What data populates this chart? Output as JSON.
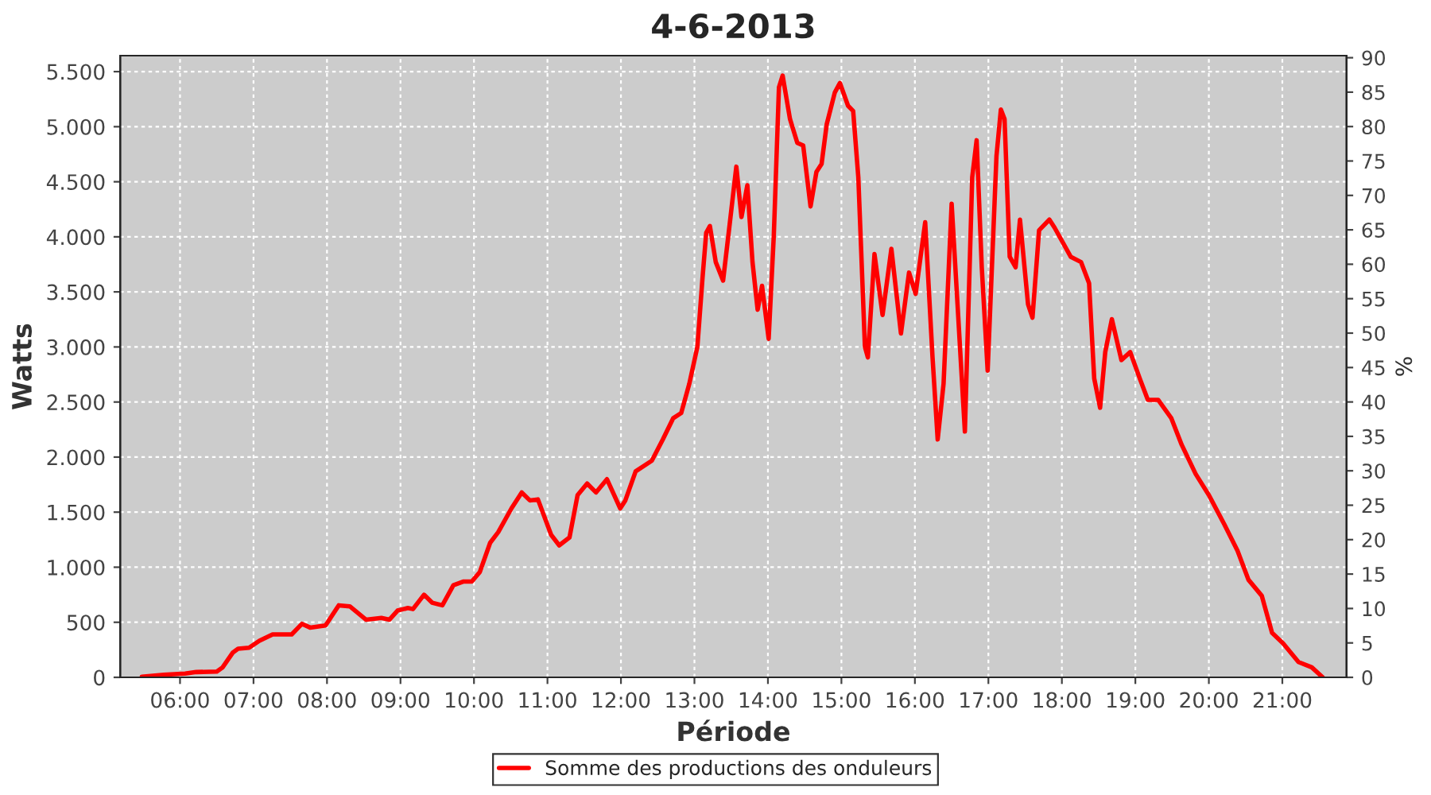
{
  "chart_data": {
    "type": "line",
    "title": "4-6-2013",
    "xlabel": "Période",
    "ylabel": "Watts",
    "y2label": "%",
    "xlim": [
      5.186,
      21.874
    ],
    "xticks": [
      {
        "value": 6,
        "label": "06:00"
      },
      {
        "value": 7,
        "label": "07:00"
      },
      {
        "value": 8,
        "label": "08:00"
      },
      {
        "value": 9,
        "label": "09:00"
      },
      {
        "value": 10,
        "label": "10:00"
      },
      {
        "value": 11,
        "label": "11:00"
      },
      {
        "value": 12,
        "label": "12:00"
      },
      {
        "value": 13,
        "label": "13:00"
      },
      {
        "value": 14,
        "label": "14:00"
      },
      {
        "value": 15,
        "label": "15:00"
      },
      {
        "value": 16,
        "label": "16:00"
      },
      {
        "value": 17,
        "label": "17:00"
      },
      {
        "value": 18,
        "label": "18:00"
      },
      {
        "value": 19,
        "label": "19:00"
      },
      {
        "value": 20,
        "label": "20:00"
      },
      {
        "value": 21,
        "label": "21:00"
      }
    ],
    "ylim": [
      0,
      5645
    ],
    "yticks": [
      0,
      500,
      {
        "value": 1000,
        "label": "1.000"
      },
      {
        "value": 1500,
        "label": "1.500"
      },
      {
        "value": 2000,
        "label": "2.000"
      },
      {
        "value": 2500,
        "label": "2.500"
      },
      {
        "value": 3000,
        "label": "3.000"
      },
      {
        "value": 3500,
        "label": "3.500"
      },
      {
        "value": 4000,
        "label": "4.000"
      },
      {
        "value": 4500,
        "label": "4.500"
      },
      {
        "value": 5000,
        "label": "5.000"
      },
      {
        "value": 5500,
        "label": "5.500"
      }
    ],
    "y2lim": [
      0,
      90.3
    ],
    "y2ticks": [
      0,
      5,
      10,
      15,
      20,
      25,
      30,
      35,
      40,
      45,
      50,
      55,
      60,
      65,
      70,
      75,
      80,
      85,
      90
    ],
    "grid": true,
    "legend": "bottom",
    "marker": "none",
    "line_style": "solid",
    "series": [
      {
        "name": "Somme des productions des onduleurs",
        "color": "#ff0000",
        "x": [
          5.48,
          5.78,
          6.07,
          6.22,
          6.5,
          6.58,
          6.72,
          6.79,
          6.94,
          7.08,
          7.26,
          7.52,
          7.66,
          7.77,
          7.98,
          8.16,
          8.31,
          8.53,
          8.74,
          8.85,
          8.96,
          9.1,
          9.17,
          9.32,
          9.43,
          9.57,
          9.72,
          9.86,
          9.97,
          10.08,
          10.22,
          10.33,
          10.51,
          10.65,
          10.76,
          10.87,
          11.05,
          11.16,
          11.3,
          11.41,
          11.54,
          11.66,
          11.81,
          11.99,
          12.06,
          12.2,
          12.42,
          12.57,
          12.71,
          12.82,
          12.93,
          13.04,
          13.11,
          13.16,
          13.21,
          13.29,
          13.39,
          13.47,
          13.57,
          13.64,
          13.72,
          13.79,
          13.86,
          13.92,
          14.01,
          14.08,
          14.15,
          14.2,
          14.3,
          14.4,
          14.48,
          14.58,
          14.66,
          14.73,
          14.8,
          14.91,
          14.98,
          15.09,
          15.16,
          15.23,
          15.32,
          15.36,
          15.45,
          15.56,
          15.68,
          15.81,
          15.92,
          16.01,
          16.14,
          16.24,
          16.31,
          16.39,
          16.5,
          16.58,
          16.68,
          16.78,
          16.84,
          16.91,
          16.99,
          17.11,
          17.17,
          17.22,
          17.29,
          17.37,
          17.43,
          17.54,
          17.6,
          17.69,
          17.83,
          17.9,
          18.12,
          18.26,
          18.37,
          18.44,
          18.52,
          18.59,
          18.68,
          18.81,
          18.93,
          19.06,
          19.17,
          19.31,
          19.49,
          19.63,
          19.82,
          20.0,
          20.21,
          20.39,
          20.54,
          20.72,
          20.86,
          21.01,
          21.22,
          21.4,
          21.55
        ],
        "values": [
          5,
          24,
          34,
          48,
          53,
          91,
          226,
          260,
          269,
          332,
          390,
          390,
          486,
          452,
          471,
          654,
          645,
          524,
          539,
          524,
          606,
          630,
          620,
          750,
          678,
          654,
          837,
          870,
          870,
          957,
          1222,
          1318,
          1534,
          1679,
          1607,
          1616,
          1294,
          1198,
          1270,
          1655,
          1760,
          1679,
          1799,
          1534,
          1607,
          1871,
          1967,
          2160,
          2352,
          2400,
          2665,
          3001,
          3627,
          4036,
          4098,
          3771,
          3603,
          4060,
          4637,
          4180,
          4468,
          3771,
          3338,
          3555,
          3074,
          4012,
          5358,
          5464,
          5070,
          4853,
          4829,
          4276,
          4589,
          4661,
          5022,
          5310,
          5397,
          5190,
          5142,
          4541,
          3001,
          2905,
          3843,
          3290,
          3891,
          3122,
          3675,
          3482,
          4132,
          2905,
          2160,
          2665,
          4300,
          3386,
          2232,
          4541,
          4877,
          3723,
          2785,
          4733,
          5156,
          5070,
          3819,
          3723,
          4156,
          3386,
          3266,
          4060,
          4156,
          4084,
          3819,
          3771,
          3579,
          2713,
          2448,
          2953,
          3252,
          2881,
          2953,
          2713,
          2520,
          2520,
          2352,
          2112,
          1847,
          1655,
          1390,
          1150,
          885,
          741,
          404,
          308,
          139,
          91,
          0
        ]
      }
    ]
  }
}
